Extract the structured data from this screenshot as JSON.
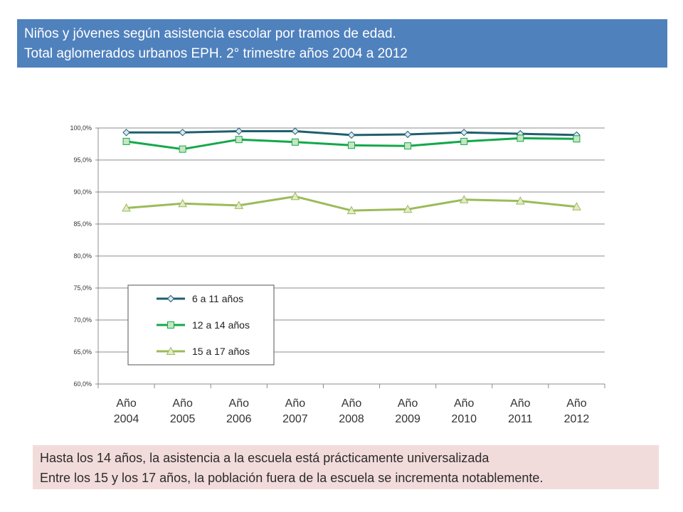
{
  "title": {
    "line1": "Niños y jóvenes según asistencia escolar por tramos de edad.",
    "line2": "Total aglomerados urbanos EPH. 2° trimestre años 2004 a 2012"
  },
  "note": {
    "line1": "Hasta los 14 años, la asistencia a la escuela está prácticamente universalizada",
    "line2": "Entre los 15 y los 17 años, la población fuera de la escuela se incrementa notablemente."
  },
  "chart_data": {
    "type": "line",
    "categories": [
      [
        "Año",
        "2004"
      ],
      [
        "Año",
        "2005"
      ],
      [
        "Año",
        "2006"
      ],
      [
        "Año",
        "2007"
      ],
      [
        "Año",
        "2008"
      ],
      [
        "Año",
        "2009"
      ],
      [
        "Año",
        "2010"
      ],
      [
        "Año",
        "2011"
      ],
      [
        "Año",
        "2012"
      ]
    ],
    "y_ticks": [
      "60,0%",
      "65,0%",
      "70,0%",
      "75,0%",
      "80,0%",
      "85,0%",
      "90,0%",
      "95,0%",
      "100,0%"
    ],
    "ylim": [
      60,
      100
    ],
    "grid": true,
    "legend_position": "bottom-left inside plot",
    "series": [
      {
        "name": "6 a 11 años",
        "color": "#1f5f6e",
        "marker": "diamond",
        "values": [
          99.3,
          99.3,
          99.5,
          99.5,
          98.9,
          99.0,
          99.3,
          99.1,
          98.9
        ]
      },
      {
        "name": "12 a 14 años",
        "color": "#14a84a",
        "marker": "square",
        "values": [
          97.9,
          96.7,
          98.2,
          97.8,
          97.3,
          97.2,
          97.9,
          98.4,
          98.3
        ]
      },
      {
        "name": "15 a 17 años",
        "color": "#9bbb59",
        "marker": "triangle",
        "values": [
          87.5,
          88.2,
          87.9,
          89.3,
          87.1,
          87.3,
          88.8,
          88.6,
          87.7
        ]
      }
    ]
  }
}
